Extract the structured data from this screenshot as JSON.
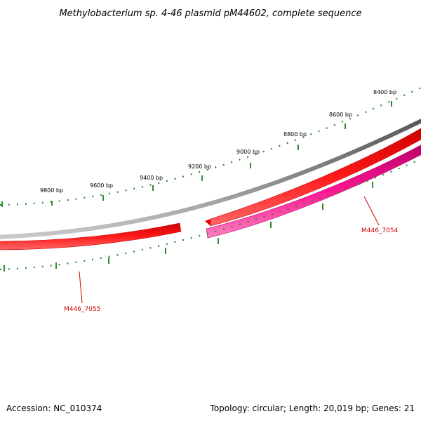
{
  "title": "Methylobacterium sp. 4-46 plasmid pM44602, complete sequence",
  "footer": {
    "accession": "Accession: NC_010374",
    "summary": "Topology: circular; Length: 20,019 bp; Genes: 21"
  },
  "ticks": {
    "major": [
      "8400 bp",
      "8600 bp",
      "8800 bp",
      "9000 bp",
      "9200 bp",
      "9400 bp",
      "9600 bp",
      "9800 bp"
    ]
  },
  "genes": [
    {
      "id": "M446_7054",
      "strand": "+",
      "color": "#e6007e"
    },
    {
      "id": "M446_7055",
      "strand": "-",
      "color": "#e00000"
    }
  ],
  "colors": {
    "backbone": "#808080",
    "forward": "#ff0000",
    "reverse": "#ff0099",
    "ticks": "#2e8b2e",
    "label": "#cc0000"
  }
}
